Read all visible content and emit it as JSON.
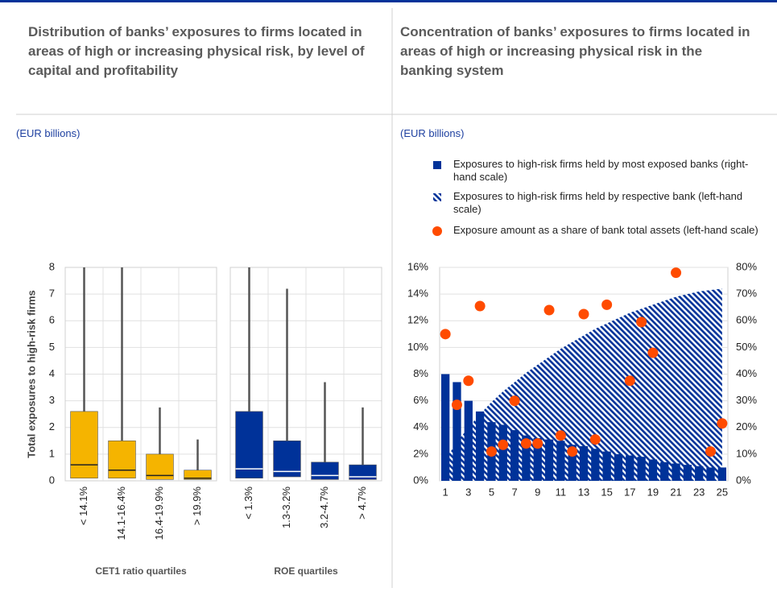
{
  "chart_data": [
    {
      "type": "box",
      "title": "Distribution of banks’ exposures to firms located in areas of high or increasing physical risk, by level of capital and profitability",
      "subtitle": "(EUR billions)",
      "ylabel": "Total exposures to high-risk firms",
      "ylim": [
        0,
        8
      ],
      "yticks": [
        0,
        1,
        2,
        3,
        4,
        5,
        6,
        7,
        8
      ],
      "grid": true,
      "panels": [
        {
          "xlabel": "CET1 ratio quartiles",
          "color": "#f5b400",
          "median_color": "#222222",
          "categories": [
            "< 14.1%",
            "14.1-16.4%",
            "16.4-19.9%",
            "> 19.9%"
          ],
          "q1": [
            0.1,
            0.1,
            0.05,
            0.05
          ],
          "median": [
            0.6,
            0.4,
            0.2,
            0.1
          ],
          "q3": [
            2.6,
            1.5,
            1.0,
            0.4
          ],
          "max": [
            8,
            8,
            2.75,
            1.55
          ]
        },
        {
          "xlabel": "ROE quartiles",
          "color": "#003299",
          "median_color": "#ffffff",
          "categories": [
            "< 1.3%",
            "1.3-3.2%",
            "3.2-4.7%",
            "> 4.7%"
          ],
          "q1": [
            0.1,
            0.15,
            0.05,
            0.05
          ],
          "median": [
            0.45,
            0.35,
            0.2,
            0.15
          ],
          "q3": [
            2.6,
            1.5,
            0.7,
            0.6
          ],
          "max": [
            8,
            7.2,
            3.7,
            2.75
          ]
        }
      ]
    },
    {
      "type": "combo",
      "title": "Concentration of banks’ exposures to firms located in areas of high or increasing physical risk in the banking system",
      "subtitle": "(EUR billions)",
      "categories": [
        "1",
        null,
        "3",
        null,
        "5",
        null,
        "7",
        null,
        "9",
        null,
        "11",
        null,
        "13",
        null,
        "15",
        null,
        "17",
        null,
        "19",
        null,
        "21",
        null,
        "23",
        null,
        "25"
      ],
      "ylim": [
        0,
        16
      ],
      "yticks": [
        {
          "value": 0,
          "label": "0%"
        },
        {
          "value": 2,
          "label": "2%"
        },
        {
          "value": 4,
          "label": "4%"
        },
        {
          "value": 6,
          "label": "6%"
        },
        {
          "value": 8,
          "label": "8%"
        },
        {
          "value": 10,
          "label": "10%"
        },
        {
          "value": 12,
          "label": "12%"
        },
        {
          "value": 14,
          "label": "14%"
        },
        {
          "value": 16,
          "label": "16%"
        }
      ],
      "y2lim": [
        0,
        80
      ],
      "y2ticks": [
        {
          "value": 0,
          "label": "0%"
        },
        {
          "value": 10,
          "label": "10%"
        },
        {
          "value": 20,
          "label": "20%"
        },
        {
          "value": 30,
          "label": "30%"
        },
        {
          "value": 40,
          "label": "40%"
        },
        {
          "value": 50,
          "label": "50%"
        },
        {
          "value": 60,
          "label": "60%"
        },
        {
          "value": 70,
          "label": "70%"
        },
        {
          "value": 80,
          "label": "80%"
        }
      ],
      "grid": true,
      "series": [
        {
          "name": "Exposures to high-risk firms held by most exposed banks (right-hand scale)",
          "kind": "bar",
          "axis": "y2",
          "color": "#003299",
          "values": [
            40,
            37,
            30,
            26,
            22,
            21,
            19,
            17,
            16,
            15.5,
            15,
            13.5,
            13,
            12,
            11,
            10,
            9.5,
            9,
            8,
            7,
            6.5,
            6,
            5.5,
            5,
            5
          ]
        },
        {
          "name": "Exposures to high-risk firms held by respective bank (left-hand scale)",
          "kind": "hatched-area",
          "axis": "y",
          "color": "#003299",
          "values": [
            1.6,
            2.9,
            4.0,
            5.0,
            5.9,
            6.7,
            7.4,
            8.1,
            8.7,
            9.3,
            9.9,
            10.4,
            10.9,
            11.4,
            11.8,
            12.2,
            12.6,
            12.9,
            13.2,
            13.5,
            13.8,
            14.0,
            14.2,
            14.3,
            14.4
          ]
        },
        {
          "name": "Exposure amount as a share of bank total assets (left-hand scale)",
          "kind": "dot",
          "axis": "y",
          "color": "#ff4b00",
          "values": [
            11.0,
            5.7,
            7.5,
            13.1,
            2.2,
            2.7,
            6.0,
            2.8,
            2.8,
            12.8,
            3.4,
            2.2,
            12.5,
            3.1,
            13.2,
            null,
            7.5,
            11.9,
            9.6,
            null,
            15.6,
            null,
            null,
            2.2,
            4.3
          ]
        }
      ]
    }
  ]
}
